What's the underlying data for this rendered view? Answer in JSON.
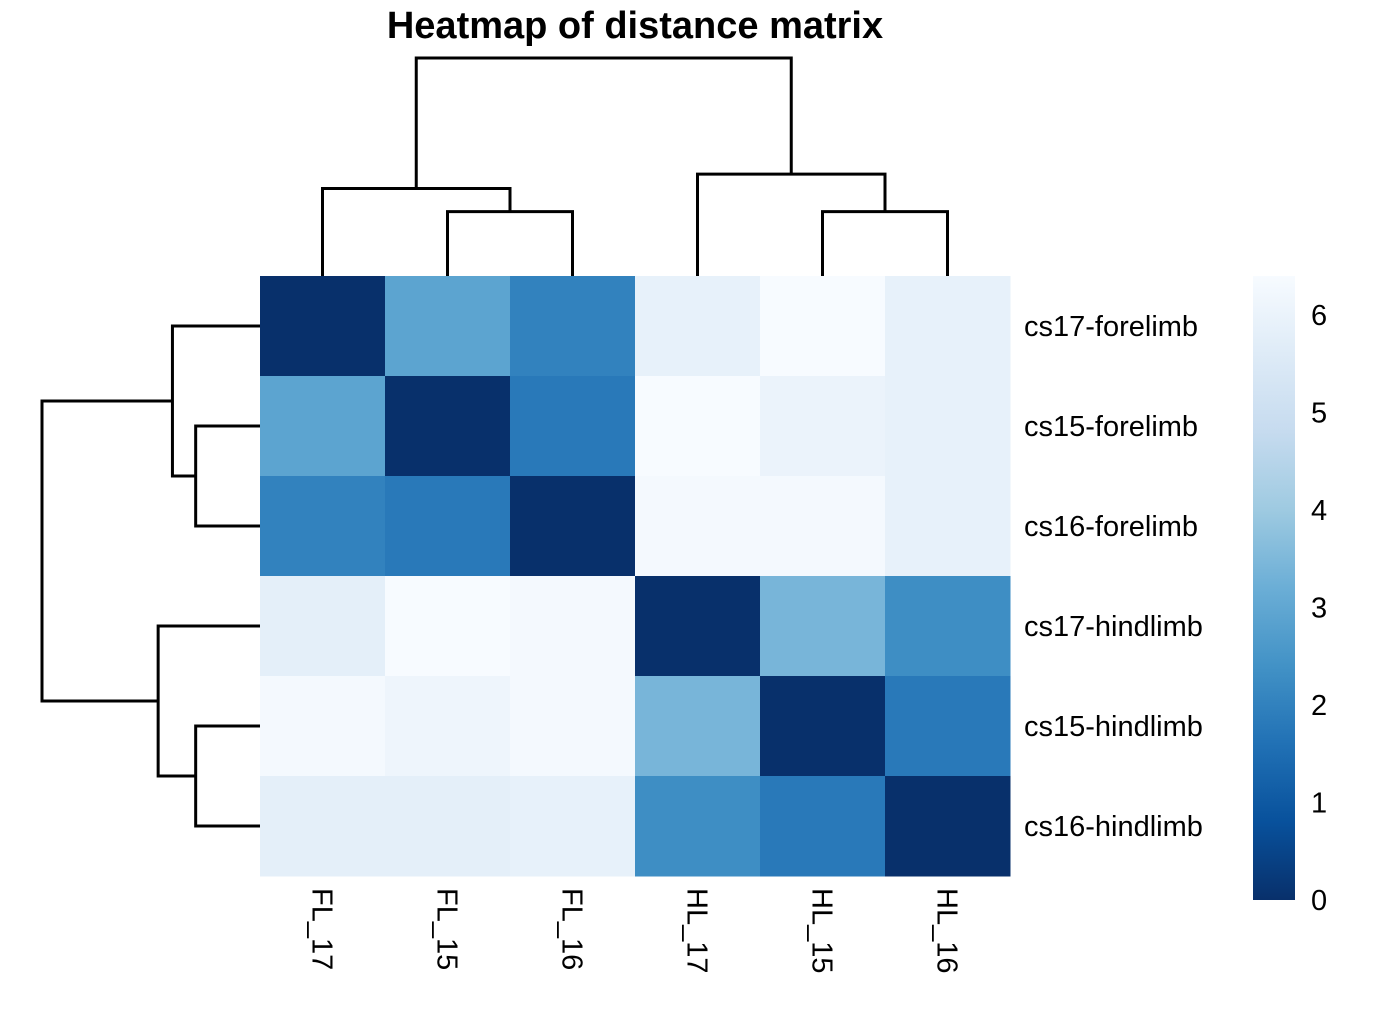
{
  "chart_data": {
    "type": "heatmap",
    "title": "Heatmap of distance matrix",
    "columns": [
      "FL_17",
      "FL_15",
      "FL_16",
      "HL_17",
      "HL_15",
      "HL_16"
    ],
    "rows": [
      "cs17-forelimb",
      "cs15-forelimb",
      "cs16-forelimb",
      "cs17-hindlimb",
      "cs15-hindlimb",
      "cs16-hindlimb"
    ],
    "values": [
      [
        0.0,
        2.9,
        2.0,
        5.9,
        6.4,
        5.9
      ],
      [
        2.9,
        0.0,
        1.8,
        6.4,
        6.0,
        5.9
      ],
      [
        2.0,
        1.8,
        0.0,
        6.3,
        6.3,
        5.9
      ],
      [
        5.8,
        6.4,
        6.3,
        0.0,
        3.4,
        2.3
      ],
      [
        6.3,
        6.1,
        6.3,
        3.4,
        0.0,
        1.8
      ],
      [
        5.8,
        5.8,
        5.9,
        2.3,
        1.8,
        0.0
      ]
    ],
    "color_scale": {
      "min": 0,
      "max": 6.4,
      "ticks": [
        0,
        1,
        2,
        3,
        4,
        5,
        6
      ],
      "colors": [
        "#08306b",
        "#08519c",
        "#2171b5",
        "#4292c6",
        "#6baed6",
        "#9ecae1",
        "#c6dbef",
        "#deebf7",
        "#f7fbff"
      ]
    },
    "column_dendrogram": {
      "merges": [
        [
          1,
          2,
          1.8
        ],
        [
          4,
          5,
          1.8
        ],
        [
          0,
          "FL_15+FL_16",
          2.45
        ],
        [
          3,
          "HL_15+HL_16",
          2.85
        ],
        [
          "FL",
          "HL",
          6.1
        ]
      ]
    },
    "row_dendrogram": {
      "merges": [
        [
          1,
          2,
          1.8
        ],
        [
          4,
          5,
          1.8
        ],
        [
          0,
          "cs15+cs16 forelimb",
          2.45
        ],
        [
          3,
          "cs15+cs16 hindlimb",
          2.85
        ],
        [
          "forelimb",
          "hindlimb",
          6.1
        ]
      ]
    },
    "legend_position": "right"
  }
}
